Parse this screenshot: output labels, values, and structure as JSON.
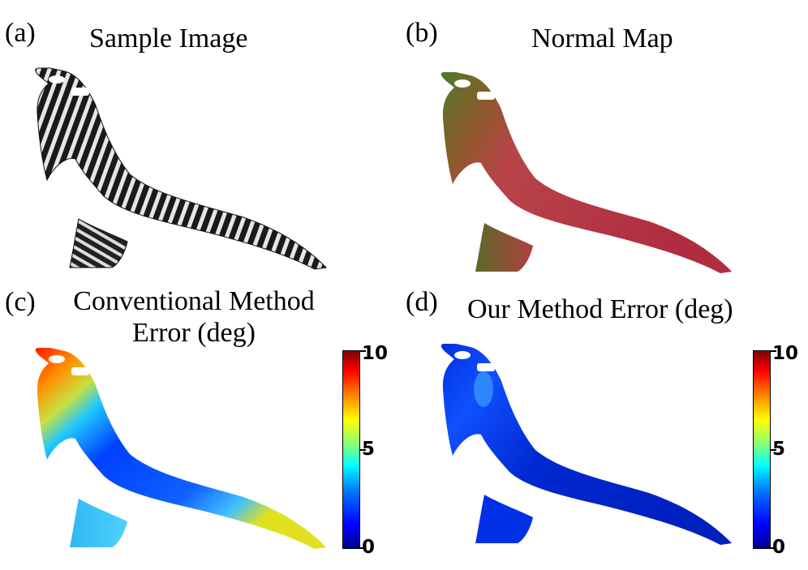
{
  "panels": [
    {
      "letter": "(a)",
      "title": "Sample Image"
    },
    {
      "letter": "(b)",
      "title": "Normal Map"
    },
    {
      "letter": "(c)",
      "title_line1": "Conventional Method",
      "title_line2": "Error (deg)"
    },
    {
      "letter": "(d)",
      "title": "Our Method Error (deg)"
    }
  ],
  "colorbar": {
    "min_label": "0",
    "mid_label": "5",
    "max_label": "10",
    "colormap": "jet"
  }
}
